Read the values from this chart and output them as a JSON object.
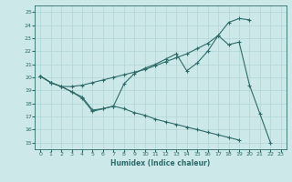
{
  "xlabel": "Humidex (Indice chaleur)",
  "ylabel": "",
  "xlim": [
    -0.5,
    23.5
  ],
  "ylim": [
    14.5,
    25.5
  ],
  "xticks": [
    0,
    1,
    2,
    3,
    4,
    5,
    6,
    7,
    8,
    9,
    10,
    11,
    12,
    13,
    14,
    15,
    16,
    17,
    18,
    19,
    20,
    21,
    22,
    23
  ],
  "yticks": [
    15,
    16,
    17,
    18,
    19,
    20,
    21,
    22,
    23,
    24,
    25
  ],
  "background_color": "#cce8e8",
  "line_color": "#2e6b6b",
  "grid_color": "#b0d4d4",
  "line1_y": [
    20.1,
    19.6,
    19.3,
    19.3,
    19.4,
    19.6,
    19.8,
    20.0,
    20.2,
    20.4,
    20.6,
    20.9,
    21.2,
    21.5,
    21.8,
    22.2,
    22.6,
    23.2,
    24.2,
    24.5,
    24.4,
    null,
    null,
    null
  ],
  "line2_y": [
    20.1,
    19.6,
    19.3,
    18.9,
    18.4,
    17.4,
    17.6,
    17.8,
    19.5,
    20.3,
    20.7,
    21.0,
    21.4,
    21.8,
    20.5,
    21.1,
    22.0,
    23.2,
    22.5,
    22.7,
    19.4,
    17.2,
    15.0,
    null
  ],
  "line3_y": [
    20.1,
    19.6,
    19.3,
    18.9,
    18.5,
    17.5,
    17.6,
    17.8,
    17.6,
    17.3,
    17.1,
    16.8,
    16.6,
    16.4,
    16.2,
    16.0,
    15.8,
    15.6,
    15.4,
    15.2,
    null,
    null,
    null,
    null
  ]
}
